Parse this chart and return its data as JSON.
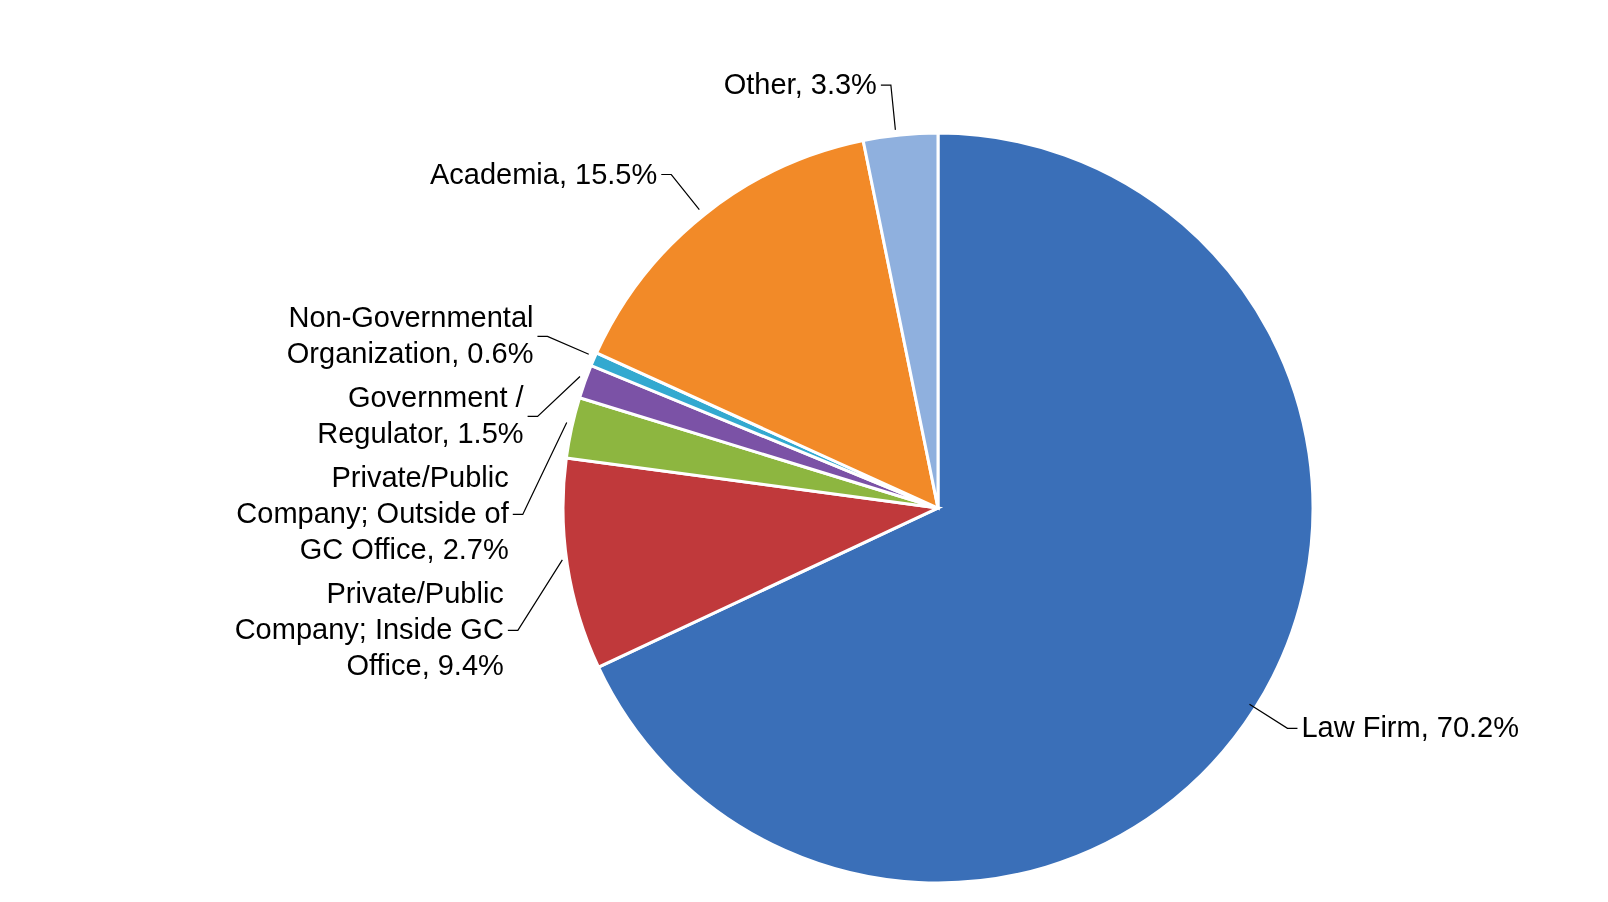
{
  "chart_data": {
    "type": "pie",
    "categories": [
      "Law Firm",
      "Private/Public Company; Inside GC Office",
      "Private/Public Company; Outside of GC Office",
      "Government / Regulator",
      "Non-Governmental Organization",
      "Academia",
      "Other"
    ],
    "values": [
      70.2,
      9.4,
      2.7,
      1.5,
      0.6,
      15.5,
      3.3
    ],
    "value_labels": [
      ", 70.2%",
      ", 9.4%",
      ", 2.7%",
      ", 1.5%",
      ", 0.6%",
      ", 15.5%",
      ", 3.3%"
    ],
    "colors": [
      "#3a6fb8",
      "#c0393b",
      "#8db640",
      "#7b52a6",
      "#33a9d0",
      "#f28a28",
      "#8fb0de"
    ]
  }
}
